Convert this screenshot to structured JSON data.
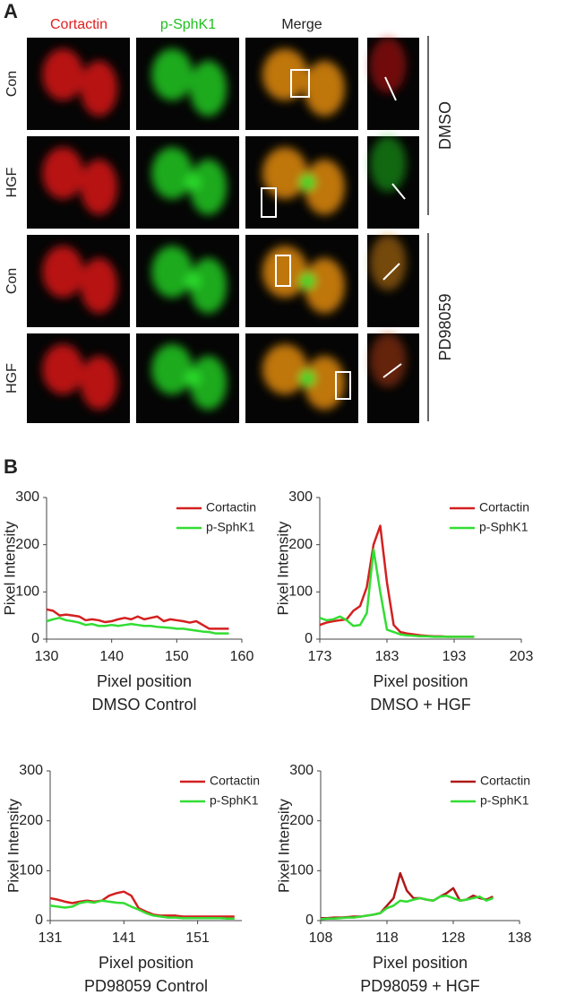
{
  "panel_a": {
    "label": "A",
    "columns": [
      "Cortactin",
      "p-SphK1",
      "Merge"
    ],
    "rows": [
      "Con",
      "HGF",
      "Con",
      "HGF"
    ],
    "groups": [
      "DMSO",
      "PD98059"
    ]
  },
  "panel_b": {
    "label": "B"
  },
  "chart_data": [
    {
      "type": "line",
      "title": "DMSO Control",
      "xlabel": "Pixel position",
      "ylabel": "Pixel Intensity",
      "x": [
        130,
        131,
        132,
        133,
        134,
        135,
        136,
        137,
        138,
        139,
        140,
        141,
        142,
        143,
        144,
        145,
        146,
        147,
        148,
        149,
        150,
        151,
        152,
        153,
        154,
        155,
        156,
        157,
        158
      ],
      "series": [
        {
          "name": "Cortactin",
          "color": "#d42020",
          "values": [
            63,
            60,
            50,
            52,
            50,
            48,
            40,
            42,
            40,
            36,
            38,
            42,
            45,
            42,
            48,
            42,
            45,
            48,
            38,
            42,
            40,
            38,
            35,
            38,
            30,
            22,
            22,
            22,
            22
          ]
        },
        {
          "name": "p-SphK1",
          "color": "#33dd33",
          "values": [
            38,
            42,
            45,
            40,
            38,
            35,
            30,
            32,
            28,
            28,
            30,
            28,
            30,
            32,
            30,
            28,
            28,
            26,
            25,
            24,
            22,
            22,
            20,
            18,
            16,
            15,
            12,
            12,
            12
          ]
        }
      ],
      "xlim": [
        130,
        160
      ],
      "xticks": [
        130,
        140,
        150,
        160
      ],
      "ylim": [
        0,
        300
      ],
      "yticks": [
        0,
        100,
        200,
        300
      ]
    },
    {
      "type": "line",
      "title": "DMSO + HGF",
      "xlabel": "Pixel position",
      "ylabel": "Pixel Intensity",
      "x": [
        173,
        174,
        175,
        176,
        177,
        178,
        179,
        180,
        181,
        182,
        183,
        184,
        185,
        186,
        187,
        188,
        189,
        190,
        191,
        192,
        193,
        194,
        195,
        196
      ],
      "series": [
        {
          "name": "Cortactin",
          "color": "#d42020",
          "values": [
            30,
            35,
            38,
            40,
            42,
            60,
            70,
            110,
            200,
            240,
            120,
            30,
            15,
            12,
            10,
            8,
            7,
            6,
            6,
            5,
            5,
            5,
            5,
            5
          ]
        },
        {
          "name": "p-SphK1",
          "color": "#33dd33",
          "values": [
            45,
            40,
            42,
            48,
            40,
            28,
            30,
            55,
            190,
            100,
            20,
            15,
            10,
            8,
            7,
            6,
            6,
            5,
            5,
            5,
            5,
            5,
            5,
            5
          ]
        }
      ],
      "xlim": [
        173,
        203
      ],
      "xticks": [
        173,
        183,
        193,
        203
      ],
      "ylim": [
        0,
        300
      ],
      "yticks": [
        0,
        100,
        200,
        300
      ]
    },
    {
      "type": "line",
      "title": "PD98059 Control",
      "xlabel": "Pixel position",
      "ylabel": "Pixel Intensity",
      "x": [
        131,
        132,
        133,
        134,
        135,
        136,
        137,
        138,
        139,
        140,
        141,
        142,
        143,
        144,
        145,
        146,
        147,
        148,
        149,
        150,
        151,
        152,
        153,
        154,
        155,
        156
      ],
      "series": [
        {
          "name": "Cortactin",
          "color": "#d42020",
          "values": [
            45,
            42,
            38,
            35,
            38,
            40,
            38,
            40,
            50,
            55,
            58,
            50,
            25,
            18,
            12,
            10,
            10,
            10,
            8,
            8,
            8,
            8,
            8,
            8,
            8,
            8
          ]
        },
        {
          "name": "p-SphK1",
          "color": "#33dd33",
          "values": [
            30,
            28,
            26,
            28,
            35,
            38,
            36,
            40,
            38,
            36,
            35,
            28,
            22,
            15,
            10,
            8,
            6,
            6,
            5,
            5,
            5,
            5,
            5,
            5,
            4,
            4
          ]
        }
      ],
      "xlim": [
        131,
        157
      ],
      "xticks": [
        131,
        141,
        151
      ],
      "ylim": [
        0,
        300
      ],
      "yticks": [
        0,
        100,
        200,
        300
      ]
    },
    {
      "type": "line",
      "title": "PD98059 + HGF",
      "xlabel": "Pixel position",
      "ylabel": "Pixel Intensity",
      "x": [
        108,
        109,
        110,
        111,
        112,
        113,
        114,
        115,
        116,
        117,
        118,
        119,
        120,
        121,
        122,
        123,
        124,
        125,
        126,
        127,
        128,
        129,
        130,
        131,
        132,
        133,
        134
      ],
      "series": [
        {
          "name": "Cortactin",
          "color": "#b01818",
          "values": [
            5,
            5,
            6,
            6,
            7,
            8,
            8,
            10,
            12,
            15,
            30,
            45,
            95,
            60,
            45,
            45,
            42,
            40,
            48,
            55,
            65,
            40,
            42,
            50,
            45,
            42,
            48
          ]
        },
        {
          "name": "p-SphK1",
          "color": "#33dd33",
          "values": [
            3,
            4,
            4,
            5,
            6,
            6,
            8,
            10,
            12,
            15,
            25,
            30,
            40,
            38,
            42,
            45,
            42,
            40,
            48,
            50,
            45,
            40,
            42,
            45,
            48,
            40,
            45
          ]
        }
      ],
      "xlim": [
        108,
        138
      ],
      "xticks": [
        108,
        118,
        128,
        138
      ],
      "ylim": [
        0,
        300
      ],
      "yticks": [
        0,
        100,
        200,
        300
      ]
    }
  ]
}
